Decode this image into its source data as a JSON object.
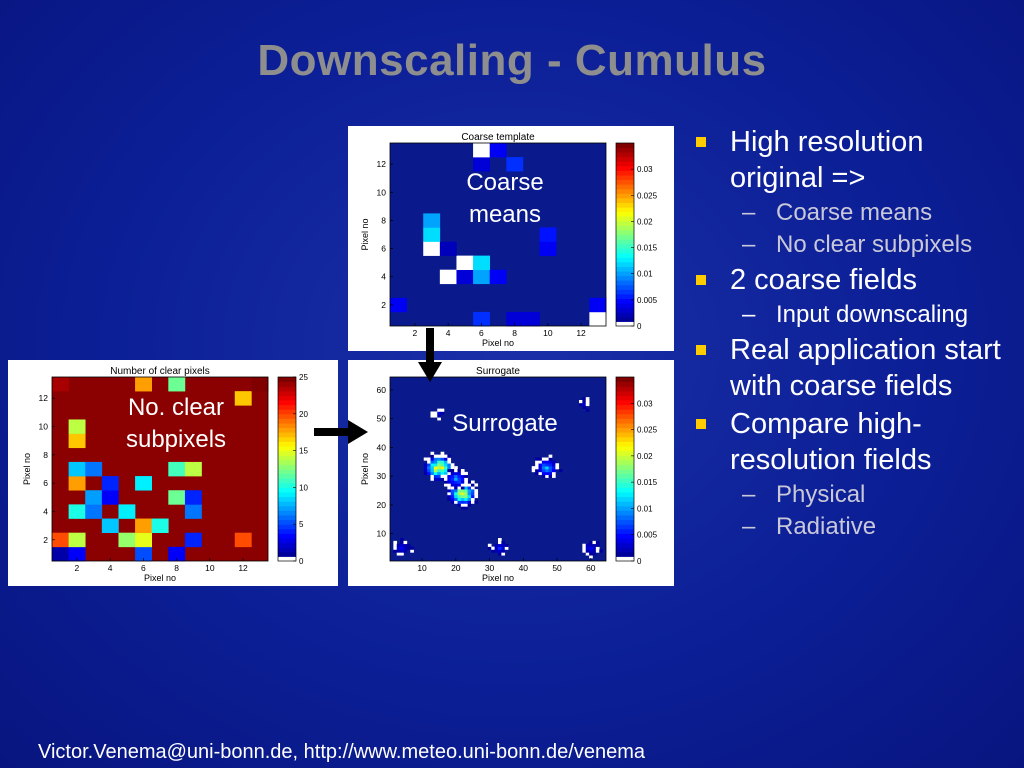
{
  "slide": {
    "title": "Downscaling - Cumulus",
    "footer": "Victor.Venema@uni-bonn.de, http://www.meteo.uni-bonn.de/venema"
  },
  "bullets": [
    {
      "text": "High resolution original =>",
      "sub": [
        "Coarse means",
        "No clear subpixels"
      ]
    },
    {
      "text": "2 coarse fields",
      "sub": [
        "Input downscaling"
      ]
    },
    {
      "text": "Real application start with coarse fields",
      "sub": []
    },
    {
      "text": "Compare high-resolution fields",
      "sub": [
        "Physical",
        "Radiative"
      ]
    }
  ],
  "labels": {
    "coarse": "Coarse means",
    "clear": "No. clear subpixels",
    "surrogate": "Surrogate"
  },
  "colors": {
    "background": "#0c1f96",
    "title": "#8e8e8e",
    "bullet": "#ffcc00",
    "field_bg": "#0a1a8c",
    "clear_bg": "#8b0000"
  },
  "chart_data": [
    {
      "type": "heatmap",
      "title": "Coarse template",
      "xlabel": "Pixel no",
      "ylabel": "Pixel no",
      "xticks": [
        "2",
        "4",
        "6",
        "8",
        "10",
        "12"
      ],
      "yticks": [
        "2",
        "4",
        "6",
        "8",
        "10",
        "12"
      ],
      "colorbar_ticks": [
        "0",
        "0.005",
        "0.01",
        "0.015",
        "0.02",
        "0.025",
        "0.03"
      ],
      "colorbar_range": [
        0,
        0.035
      ],
      "grid_size": 13,
      "cells": [
        [
          6,
          1,
          0.006
        ],
        [
          8,
          1,
          0.003
        ],
        [
          9,
          1,
          0.003
        ],
        [
          13,
          1,
          0.0
        ],
        [
          13,
          2,
          0.004
        ],
        [
          1,
          2,
          0.004
        ],
        [
          4,
          4,
          0.0
        ],
        [
          5,
          4,
          0.003
        ],
        [
          6,
          4,
          0.01
        ],
        [
          7,
          4,
          0.004
        ],
        [
          5,
          5,
          0.0
        ],
        [
          6,
          5,
          0.012
        ],
        [
          3,
          6,
          0.0
        ],
        [
          4,
          6,
          0.002
        ],
        [
          10,
          6,
          0.004
        ],
        [
          3,
          7,
          0.012
        ],
        [
          10,
          7,
          0.005
        ],
        [
          3,
          8,
          0.01
        ],
        [
          6,
          12,
          0.003
        ],
        [
          8,
          12,
          0.006
        ],
        [
          6,
          13,
          0.0
        ],
        [
          7,
          13,
          0.004
        ]
      ]
    },
    {
      "type": "heatmap",
      "title": "Number of clear pixels",
      "xlabel": "Pixel no",
      "ylabel": "Pixel no",
      "xticks": [
        "2",
        "4",
        "6",
        "8",
        "10",
        "12"
      ],
      "yticks": [
        "2",
        "4",
        "6",
        "8",
        "10",
        "12"
      ],
      "colorbar_ticks": [
        "0",
        "5",
        "10",
        "15",
        "20",
        "25"
      ],
      "colorbar_range": [
        0,
        25
      ],
      "grid_size": 13,
      "cells": [
        [
          1,
          1,
          1
        ],
        [
          2,
          1,
          3
        ],
        [
          6,
          1,
          5
        ],
        [
          8,
          1,
          3
        ],
        [
          1,
          2,
          20
        ],
        [
          2,
          2,
          14
        ],
        [
          5,
          2,
          13
        ],
        [
          6,
          2,
          15
        ],
        [
          9,
          2,
          4
        ],
        [
          12,
          2,
          20
        ],
        [
          4,
          3,
          8
        ],
        [
          6,
          3,
          18
        ],
        [
          7,
          3,
          10
        ],
        [
          2,
          4,
          10
        ],
        [
          3,
          4,
          6
        ],
        [
          5,
          4,
          9
        ],
        [
          9,
          4,
          6
        ],
        [
          3,
          5,
          7
        ],
        [
          4,
          5,
          3
        ],
        [
          8,
          5,
          12
        ],
        [
          9,
          5,
          4
        ],
        [
          2,
          6,
          18
        ],
        [
          4,
          6,
          4
        ],
        [
          6,
          6,
          9
        ],
        [
          2,
          7,
          8
        ],
        [
          3,
          7,
          6
        ],
        [
          8,
          7,
          11
        ],
        [
          9,
          7,
          14
        ],
        [
          2,
          9,
          17
        ],
        [
          2,
          10,
          14
        ],
        [
          6,
          13,
          18
        ],
        [
          8,
          13,
          12
        ],
        [
          12,
          12,
          17
        ],
        [
          13,
          13,
          25
        ],
        [
          1,
          13,
          24
        ]
      ]
    },
    {
      "type": "heatmap",
      "title": "Surrogate",
      "xlabel": "Pixel no",
      "ylabel": "Pixel no",
      "xticks": [
        "10",
        "20",
        "30",
        "40",
        "50",
        "60"
      ],
      "yticks": [
        "10",
        "20",
        "30",
        "40",
        "50",
        "60"
      ],
      "colorbar_ticks": [
        "0",
        "0.005",
        "0.01",
        "0.015",
        "0.02",
        "0.025",
        "0.03"
      ],
      "colorbar_range": [
        0,
        0.035
      ],
      "clusters": [
        {
          "cx": 15,
          "cy": 33,
          "r": 4,
          "peak": 0.03
        },
        {
          "cx": 22,
          "cy": 24,
          "r": 4,
          "peak": 0.028
        },
        {
          "cx": 20,
          "cy": 29,
          "r": 3,
          "peak": 0.012
        },
        {
          "cx": 47,
          "cy": 33,
          "r": 3,
          "peak": 0.012
        },
        {
          "cx": 33,
          "cy": 5,
          "r": 2,
          "peak": 0.006
        },
        {
          "cx": 4,
          "cy": 5,
          "r": 2,
          "peak": 0.005
        },
        {
          "cx": 60,
          "cy": 5,
          "r": 2,
          "peak": 0.005
        },
        {
          "cx": 15,
          "cy": 52,
          "r": 1,
          "peak": 0.004
        },
        {
          "cx": 58,
          "cy": 55,
          "r": 1,
          "peak": 0.004
        }
      ]
    }
  ]
}
